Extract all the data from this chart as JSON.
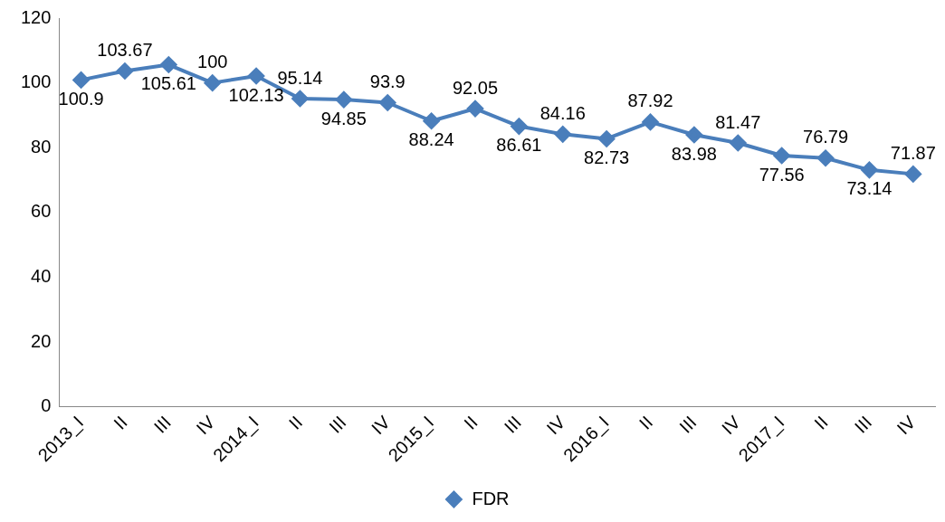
{
  "chart_data": {
    "type": "line",
    "categories": [
      "2013_I",
      "II",
      "III",
      "IV",
      "2014_I",
      "II",
      "III",
      "IV",
      "2015_I",
      "II",
      "III",
      "IV",
      "2016_I",
      "II",
      "III",
      "IV",
      "2017_I",
      "II",
      "III",
      "IV"
    ],
    "series": [
      {
        "name": "FDR",
        "color": "#4a7ebb",
        "values": [
          100.9,
          103.67,
          105.61,
          100,
          102.13,
          95.14,
          94.85,
          93.9,
          88.24,
          92.05,
          86.61,
          84.16,
          82.73,
          87.92,
          83.98,
          81.47,
          77.56,
          76.79,
          73.14,
          71.87
        ]
      }
    ],
    "ylim": [
      0,
      120
    ],
    "yticks": [
      0,
      20,
      40,
      60,
      80,
      100,
      120
    ],
    "grid": false,
    "legend": "bottom",
    "marker": "diamond",
    "line_style": "solid",
    "data_labels": true
  }
}
